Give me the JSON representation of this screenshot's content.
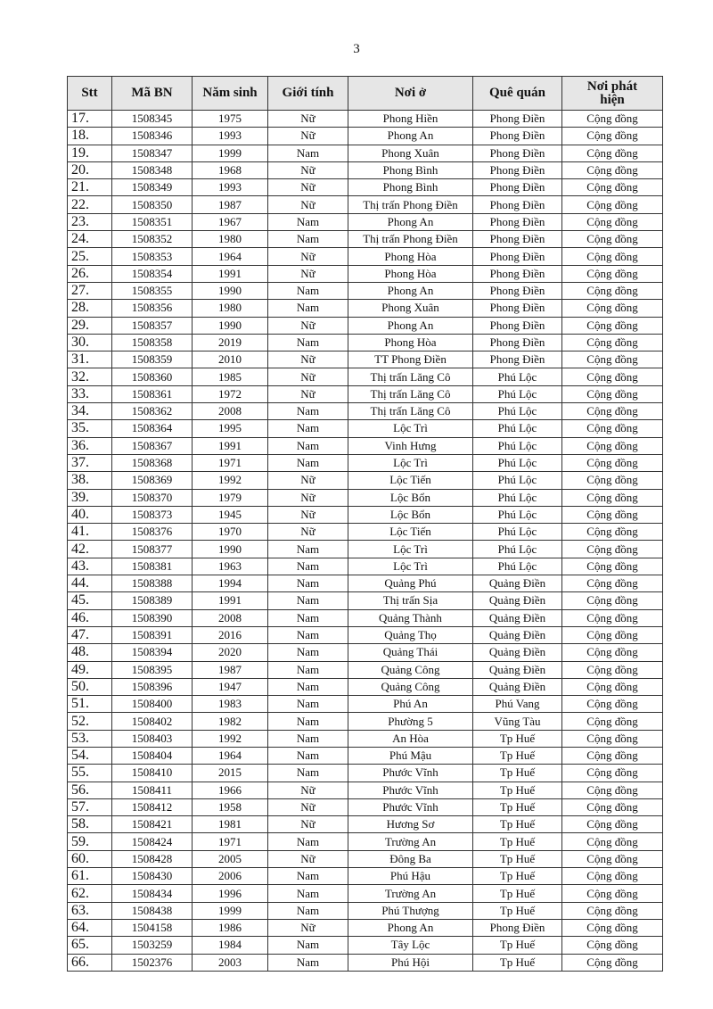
{
  "page_number": "3",
  "columns": [
    "Stt",
    "Mã BN",
    "Năm sinh",
    "Giới tính",
    "Nơi ở",
    "Quê quán",
    "Nơi phát hiện"
  ],
  "rows": [
    [
      "17.",
      "1508345",
      "1975",
      "Nữ",
      "Phong Hiền",
      "Phong Điền",
      "Cộng đồng"
    ],
    [
      "18.",
      "1508346",
      "1993",
      "Nữ",
      "Phong An",
      "Phong Điền",
      "Cộng đồng"
    ],
    [
      "19.",
      "1508347",
      "1999",
      "Nam",
      "Phong Xuân",
      "Phong Điền",
      "Cộng đồng"
    ],
    [
      "20.",
      "1508348",
      "1968",
      "Nữ",
      "Phong Bình",
      "Phong Điền",
      "Cộng đồng"
    ],
    [
      "21.",
      "1508349",
      "1993",
      "Nữ",
      "Phong Bình",
      "Phong Điền",
      "Cộng đồng"
    ],
    [
      "22.",
      "1508350",
      "1987",
      "Nữ",
      "Thị trấn Phong Điền",
      "Phong Điền",
      "Cộng đồng"
    ],
    [
      "23.",
      "1508351",
      "1967",
      "Nam",
      "Phong An",
      "Phong Điền",
      "Cộng đồng"
    ],
    [
      "24.",
      "1508352",
      "1980",
      "Nam",
      "Thị trấn Phong Điền",
      "Phong Điền",
      "Cộng đồng"
    ],
    [
      "25.",
      "1508353",
      "1964",
      "Nữ",
      "Phong Hòa",
      "Phong Điền",
      "Cộng đồng"
    ],
    [
      "26.",
      "1508354",
      "1991",
      "Nữ",
      "Phong Hòa",
      "Phong Điền",
      "Cộng đồng"
    ],
    [
      "27.",
      "1508355",
      "1990",
      "Nam",
      "Phong An",
      "Phong Điền",
      "Cộng đồng"
    ],
    [
      "28.",
      "1508356",
      "1980",
      "Nam",
      "Phong Xuân",
      "Phong Điền",
      "Cộng đồng"
    ],
    [
      "29.",
      "1508357",
      "1990",
      "Nữ",
      "Phong An",
      "Phong Điền",
      "Cộng đồng"
    ],
    [
      "30.",
      "1508358",
      "2019",
      "Nam",
      "Phong Hòa",
      "Phong Điền",
      "Cộng đồng"
    ],
    [
      "31.",
      "1508359",
      "2010",
      "Nữ",
      "TT Phong Điền",
      "Phong Điền",
      "Cộng đồng"
    ],
    [
      "32.",
      "1508360",
      "1985",
      "Nữ",
      "Thị trấn Lăng Cô",
      "Phú Lộc",
      "Cộng đồng"
    ],
    [
      "33.",
      "1508361",
      "1972",
      "Nữ",
      "Thị trấn Lăng Cô",
      "Phú Lộc",
      "Cộng đồng"
    ],
    [
      "34.",
      "1508362",
      "2008",
      "Nam",
      "Thị trấn Lăng Cô",
      "Phú Lộc",
      "Cộng đồng"
    ],
    [
      "35.",
      "1508364",
      "1995",
      "Nam",
      "Lộc Trì",
      "Phú Lộc",
      "Cộng đồng"
    ],
    [
      "36.",
      "1508367",
      "1991",
      "Nam",
      "Vinh Hưng",
      "Phú Lộc",
      "Cộng đồng"
    ],
    [
      "37.",
      "1508368",
      "1971",
      "Nam",
      "Lộc Trì",
      "Phú Lộc",
      "Cộng đồng"
    ],
    [
      "38.",
      "1508369",
      "1992",
      "Nữ",
      "Lộc Tiến",
      "Phú Lộc",
      "Cộng đồng"
    ],
    [
      "39.",
      "1508370",
      "1979",
      "Nữ",
      "Lộc Bổn",
      "Phú Lộc",
      "Cộng đồng"
    ],
    [
      "40.",
      "1508373",
      "1945",
      "Nữ",
      "Lộc Bổn",
      "Phú Lộc",
      "Cộng đồng"
    ],
    [
      "41.",
      "1508376",
      "1970",
      "Nữ",
      "Lộc Tiến",
      "Phú Lộc",
      "Cộng đồng"
    ],
    [
      "42.",
      "1508377",
      "1990",
      "Nam",
      "Lộc Trì",
      "Phú Lộc",
      "Cộng đồng"
    ],
    [
      "43.",
      "1508381",
      "1963",
      "Nam",
      "Lộc Trì",
      "Phú Lộc",
      "Cộng đồng"
    ],
    [
      "44.",
      "1508388",
      "1994",
      "Nam",
      "Quảng Phú",
      "Quảng Điền",
      "Cộng đồng"
    ],
    [
      "45.",
      "1508389",
      "1991",
      "Nam",
      "Thị trấn Sịa",
      "Quảng Điền",
      "Cộng đồng"
    ],
    [
      "46.",
      "1508390",
      "2008",
      "Nam",
      "Quảng Thành",
      "Quảng Điền",
      "Cộng đồng"
    ],
    [
      "47.",
      "1508391",
      "2016",
      "Nam",
      "Quảng Thọ",
      "Quảng Điền",
      "Cộng đồng"
    ],
    [
      "48.",
      "1508394",
      "2020",
      "Nam",
      "Quảng Thái",
      "Quảng Điền",
      "Cộng đồng"
    ],
    [
      "49.",
      "1508395",
      "1987",
      "Nam",
      "Quảng Công",
      "Quảng Điền",
      "Cộng đồng"
    ],
    [
      "50.",
      "1508396",
      "1947",
      "Nam",
      "Quảng Công",
      "Quảng Điền",
      "Cộng đồng"
    ],
    [
      "51.",
      "1508400",
      "1983",
      "Nam",
      "Phú An",
      "Phú Vang",
      "Cộng đồng"
    ],
    [
      "52.",
      "1508402",
      "1982",
      "Nam",
      "Phường 5",
      "Vũng Tàu",
      "Cộng đồng"
    ],
    [
      "53.",
      "1508403",
      "1992",
      "Nam",
      "An Hòa",
      "Tp Huế",
      "Cộng đồng"
    ],
    [
      "54.",
      "1508404",
      "1964",
      "Nam",
      "Phú Mậu",
      "Tp Huế",
      "Cộng đồng"
    ],
    [
      "55.",
      "1508410",
      "2015",
      "Nam",
      "Phước Vĩnh",
      "Tp Huế",
      "Cộng đồng"
    ],
    [
      "56.",
      "1508411",
      "1966",
      "Nữ",
      "Phước Vĩnh",
      "Tp Huế",
      "Cộng đồng"
    ],
    [
      "57.",
      "1508412",
      "1958",
      "Nữ",
      "Phước Vĩnh",
      "Tp Huế",
      "Cộng đồng"
    ],
    [
      "58.",
      "1508421",
      "1981",
      "Nữ",
      "Hương Sơ",
      "Tp Huế",
      "Cộng đồng"
    ],
    [
      "59.",
      "1508424",
      "1971",
      "Nam",
      "Trường An",
      "Tp Huế",
      "Cộng đồng"
    ],
    [
      "60.",
      "1508428",
      "2005",
      "Nữ",
      "Đông Ba",
      "Tp Huế",
      "Cộng đồng"
    ],
    [
      "61.",
      "1508430",
      "2006",
      "Nam",
      "Phú Hậu",
      "Tp Huế",
      "Cộng đồng"
    ],
    [
      "62.",
      "1508434",
      "1996",
      "Nam",
      "Trường An",
      "Tp Huế",
      "Cộng đồng"
    ],
    [
      "63.",
      "1508438",
      "1999",
      "Nam",
      "Phú Thượng",
      "Tp Huế",
      "Cộng đồng"
    ],
    [
      "64.",
      "1504158",
      "1986",
      "Nữ",
      "Phong An",
      "Phong Điền",
      "Cộng đồng"
    ],
    [
      "65.",
      "1503259",
      "1984",
      "Nam",
      "Tây Lộc",
      "Tp Huế",
      "Cộng đồng"
    ],
    [
      "66.",
      "1502376",
      "2003",
      "Nam",
      "Phú Hội",
      "Tp Huế",
      "Cộng đồng"
    ]
  ]
}
